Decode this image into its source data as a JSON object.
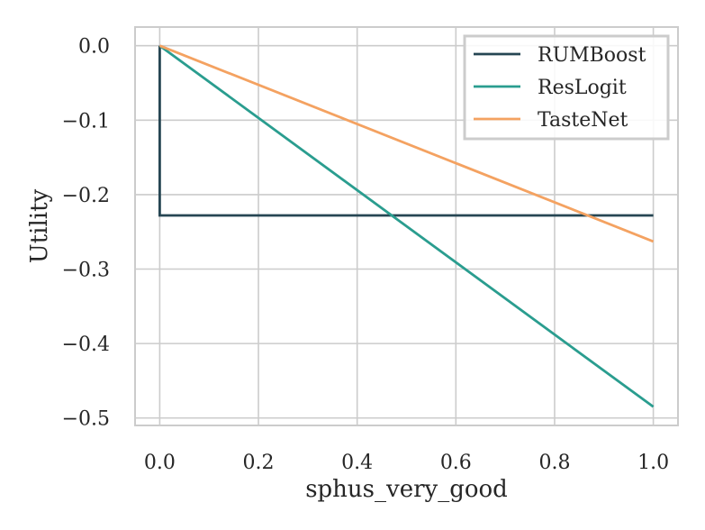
{
  "chart_data": {
    "type": "line",
    "xlabel": "sphus_very_good",
    "ylabel": "Utility",
    "xlim": [
      -0.05,
      1.05
    ],
    "ylim": [
      -0.51,
      0.025
    ],
    "x_ticks": [
      0.0,
      0.2,
      0.4,
      0.6,
      0.8,
      1.0
    ],
    "x_tick_labels": [
      "0.0",
      "0.2",
      "0.4",
      "0.6",
      "0.8",
      "1.0"
    ],
    "y_ticks": [
      0.0,
      -0.1,
      -0.2,
      -0.3,
      -0.4,
      -0.5
    ],
    "y_tick_labels": [
      "0.0",
      "−0.1",
      "−0.2",
      "−0.3",
      "−0.4",
      "−0.5"
    ],
    "grid": true,
    "legend_position": "top-right",
    "series": [
      {
        "name": "RUMBoost",
        "color": "#264653",
        "x": [
          0.0,
          0.0,
          1.0
        ],
        "y": [
          0.0,
          -0.228,
          -0.228
        ]
      },
      {
        "name": "ResLogit",
        "color": "#2a9d8f",
        "x": [
          0.0,
          1.0
        ],
        "y": [
          0.0,
          -0.485
        ]
      },
      {
        "name": "TasteNet",
        "color": "#f4a261",
        "x": [
          0.0,
          1.0
        ],
        "y": [
          0.0,
          -0.263
        ]
      }
    ]
  }
}
